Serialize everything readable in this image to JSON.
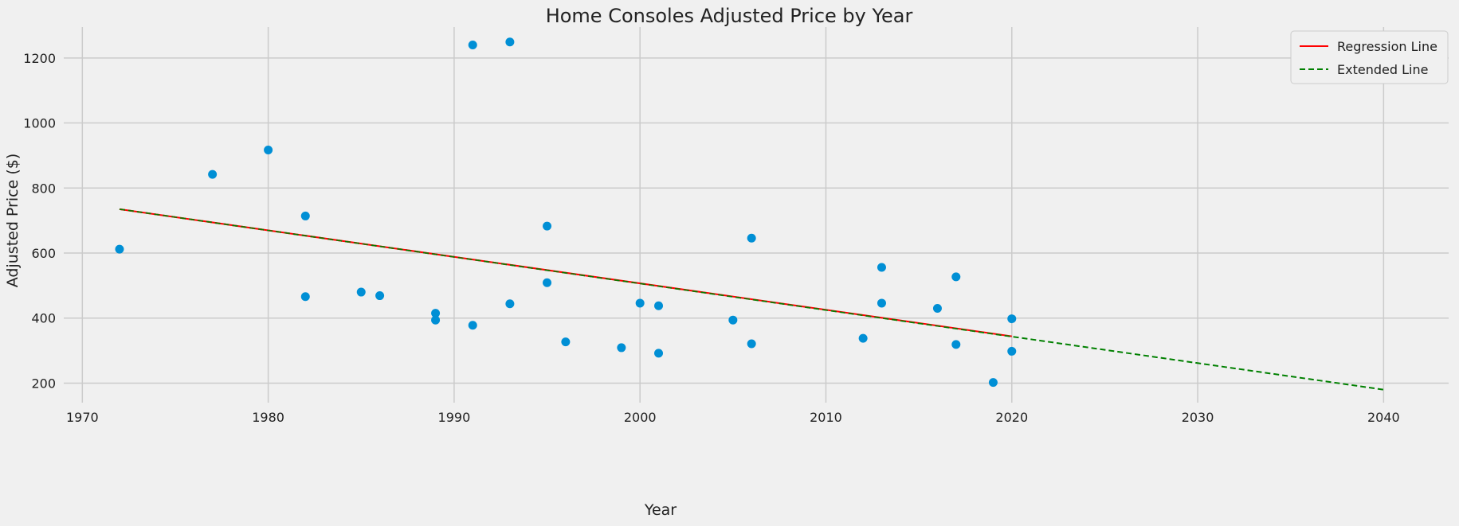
{
  "chart_data": {
    "type": "scatter",
    "title": "Home Consoles Adjusted Price by Year",
    "xlabel": "Year",
    "ylabel": "Adjusted Price ($)",
    "xlim": [
      1969,
      2043.5
    ],
    "ylim": [
      140,
      1295
    ],
    "xticks": [
      1970,
      1980,
      1990,
      2000,
      2010,
      2020,
      2030,
      2040
    ],
    "yticks": [
      200,
      400,
      600,
      800,
      1000,
      1200
    ],
    "grid": true,
    "legend_position": "top-right",
    "colors": {
      "points": "#008fd5",
      "regression": "#ff0000",
      "extended": "#008000",
      "grid": "#cbcbcb",
      "background": "#f0f0f0"
    },
    "points": [
      {
        "x": 1972,
        "y": 612
      },
      {
        "x": 1977,
        "y": 842
      },
      {
        "x": 1980,
        "y": 917
      },
      {
        "x": 1982,
        "y": 714
      },
      {
        "x": 1982,
        "y": 466
      },
      {
        "x": 1985,
        "y": 480
      },
      {
        "x": 1986,
        "y": 469
      },
      {
        "x": 1989,
        "y": 415
      },
      {
        "x": 1989,
        "y": 394
      },
      {
        "x": 1991,
        "y": 1240
      },
      {
        "x": 1991,
        "y": 378
      },
      {
        "x": 1993,
        "y": 1249
      },
      {
        "x": 1993,
        "y": 444
      },
      {
        "x": 1995,
        "y": 683
      },
      {
        "x": 1995,
        "y": 509
      },
      {
        "x": 1996,
        "y": 327
      },
      {
        "x": 1999,
        "y": 309
      },
      {
        "x": 2000,
        "y": 446
      },
      {
        "x": 2001,
        "y": 438
      },
      {
        "x": 2001,
        "y": 292
      },
      {
        "x": 2005,
        "y": 394
      },
      {
        "x": 2006,
        "y": 646
      },
      {
        "x": 2006,
        "y": 321
      },
      {
        "x": 2012,
        "y": 338
      },
      {
        "x": 2013,
        "y": 556
      },
      {
        "x": 2013,
        "y": 446
      },
      {
        "x": 2016,
        "y": 430
      },
      {
        "x": 2017,
        "y": 527
      },
      {
        "x": 2017,
        "y": 319
      },
      {
        "x": 2019,
        "y": 202
      },
      {
        "x": 2020,
        "y": 398
      },
      {
        "x": 2020,
        "y": 298
      }
    ],
    "series": [
      {
        "name": "Regression Line",
        "style": "solid",
        "x": [
          1972,
          2020
        ],
        "y": [
          735,
          344
        ]
      },
      {
        "name": "Extended Line",
        "style": "dashed",
        "x": [
          1972,
          2040
        ],
        "y": [
          735,
          180
        ]
      }
    ]
  }
}
